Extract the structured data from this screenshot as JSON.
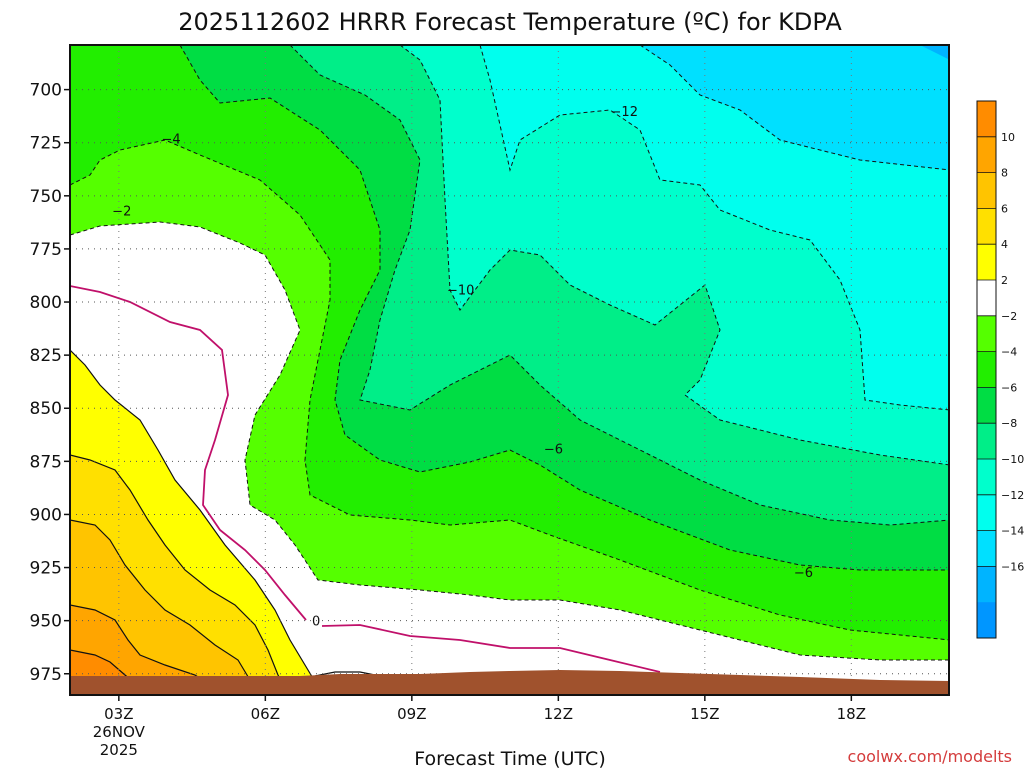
{
  "chart_data": {
    "type": "heatmap",
    "title": "2025112602 HRRR Forecast Temperature (ºC) for KDPA",
    "xlabel": "Forecast Time (UTC)",
    "ylabel": "",
    "x_ticks": [
      {
        "value": 3,
        "label": "03Z",
        "sub1": "26NOV",
        "sub2": "2025"
      },
      {
        "value": 6,
        "label": "06Z"
      },
      {
        "value": 9,
        "label": "09Z"
      },
      {
        "value": 12,
        "label": "12Z"
      },
      {
        "value": 15,
        "label": "15Z"
      },
      {
        "value": 18,
        "label": "18Z"
      }
    ],
    "xlim": [
      2,
      20
    ],
    "y_ticks": [
      700,
      725,
      750,
      775,
      800,
      825,
      850,
      875,
      900,
      925,
      950,
      975
    ],
    "ylim": [
      679,
      985
    ],
    "y_inverted": true,
    "grid": true,
    "colorbar": {
      "placement": "right",
      "labels": [
        "10",
        "8",
        "6",
        "4",
        "2",
        "−2",
        "−4",
        "−6",
        "−8",
        "−10",
        "−12",
        "−14",
        "−16"
      ],
      "colors": [
        "#ff8c00",
        "#ffa500",
        "#ffc400",
        "#ffe000",
        "#ffff00",
        "#ffffff",
        "#55ff00",
        "#22ee00",
        "#00dd44",
        "#00ee88",
        "#00ffcc",
        "#00ffee",
        "#00e0ff",
        "#00b4ff",
        "#0096ff"
      ]
    },
    "contour_labels": [
      {
        "text": "−12",
        "x": 13.35,
        "y": 710
      },
      {
        "text": "−4",
        "x": 4.07,
        "y": 723
      },
      {
        "text": "−2",
        "x": 3.06,
        "y": 757
      },
      {
        "text": "−10",
        "x": 10.0,
        "y": 794
      },
      {
        "text": "−6",
        "x": 11.9,
        "y": 869
      },
      {
        "text": "−6",
        "x": 17.02,
        "y": 927
      },
      {
        "text": "0",
        "x": 7.04,
        "y": 950
      }
    ],
    "credit": "coolwx.com/modelts"
  }
}
